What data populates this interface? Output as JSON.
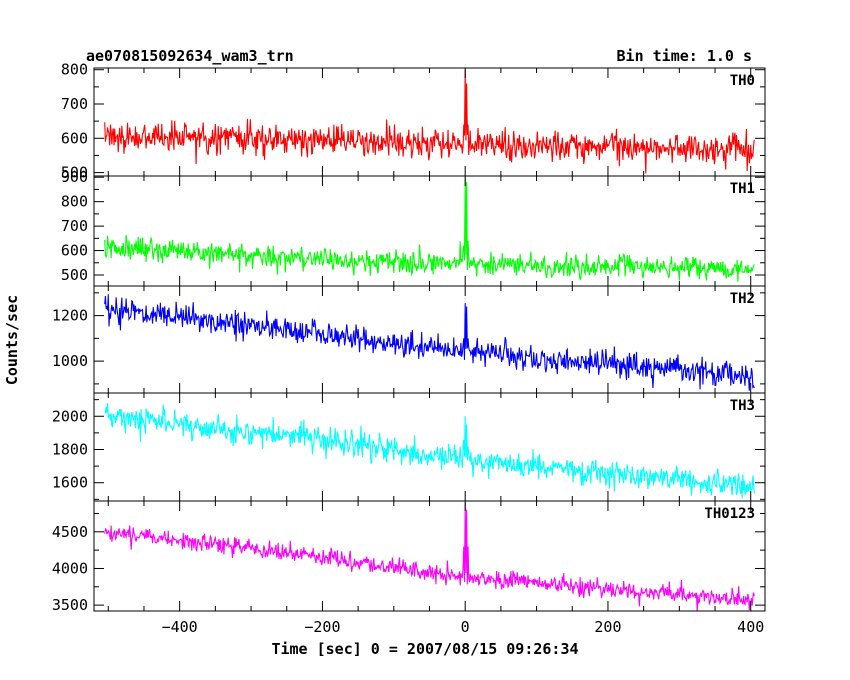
{
  "header": {
    "title": "ae070815092634_wam3_trn",
    "bin_time": "Bin time: 1.0 s"
  },
  "chart_data": {
    "type": "line",
    "xlabel": "Time [sec] 0 = 2007/08/15 09:26:34",
    "ylabel": "Counts/sec",
    "xlim": [
      -520,
      420
    ],
    "x_ticks": [
      -400,
      -200,
      0,
      200,
      400
    ],
    "x_tick_labels": [
      "−400",
      "−200",
      "0",
      "200",
      "400"
    ],
    "x_range_data": [
      -505,
      405
    ],
    "burst_time": 0,
    "grid": false,
    "legend": "none",
    "panels": [
      {
        "label": "TH0",
        "color": "#ff0000",
        "ylim": [
          490,
          805
        ],
        "yticks": [
          500,
          600,
          700,
          800
        ],
        "trend": [
          [
            -505,
            610
          ],
          [
            -200,
            595
          ],
          [
            0,
            580
          ],
          [
            405,
            565
          ]
        ],
        "noise_sd": 22,
        "spike": [
          [
            -2,
            640
          ],
          [
            0,
            800
          ],
          [
            2,
            760
          ],
          [
            4,
            640
          ]
        ],
        "points": []
      },
      {
        "label": "TH1",
        "color": "#00ff00",
        "ylim": [
          455,
          905
        ],
        "yticks": [
          500,
          600,
          700,
          800,
          900
        ],
        "trend": [
          [
            -505,
            615
          ],
          [
            -200,
            565
          ],
          [
            0,
            545
          ],
          [
            405,
            520
          ]
        ],
        "noise_sd": 24,
        "spike": [
          [
            -2,
            620
          ],
          [
            0,
            900
          ],
          [
            2,
            880
          ],
          [
            4,
            640
          ]
        ],
        "points": []
      },
      {
        "label": "TH2",
        "color": "#0000ff",
        "ylim": [
          860,
          1330
        ],
        "yticks": [
          1000,
          1200
        ],
        "trend": [
          [
            -505,
            1230
          ],
          [
            -200,
            1120
          ],
          [
            0,
            1040
          ],
          [
            405,
            930
          ]
        ],
        "noise_sd": 28,
        "spike": [
          [
            -2,
            1100
          ],
          [
            0,
            1255
          ],
          [
            2,
            1240
          ],
          [
            4,
            1100
          ]
        ],
        "points": []
      },
      {
        "label": "TH3",
        "color": "#00ffff",
        "ylim": [
          1490,
          2140
        ],
        "yticks": [
          1600,
          1800,
          2000
        ],
        "trend": [
          [
            -505,
            2000
          ],
          [
            -200,
            1860
          ],
          [
            0,
            1740
          ],
          [
            405,
            1580
          ]
        ],
        "noise_sd": 38,
        "spike": [
          [
            -2,
            1860
          ],
          [
            0,
            2000
          ],
          [
            2,
            1950
          ],
          [
            4,
            1820
          ]
        ],
        "points": []
      },
      {
        "label": "TH0123",
        "color": "#ff00ff",
        "ylim": [
          3420,
          4920
        ],
        "yticks": [
          3500,
          4000,
          4500
        ],
        "trend": [
          [
            -505,
            4500
          ],
          [
            -200,
            4150
          ],
          [
            0,
            3880
          ],
          [
            405,
            3560
          ]
        ],
        "noise_sd": 60,
        "spike": [
          [
            -2,
            4300
          ],
          [
            0,
            4900
          ],
          [
            2,
            4800
          ],
          [
            4,
            4300
          ]
        ],
        "points": []
      }
    ]
  }
}
